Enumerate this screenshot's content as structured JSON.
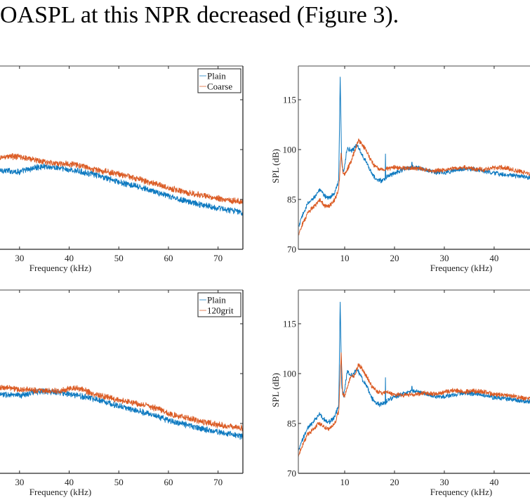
{
  "page": {
    "caption_fragment": "OASPL at this NPR decreased (Figure 3)."
  },
  "colors": {
    "plain": "#0072BD",
    "rough": "#D95319",
    "axis": "#262626",
    "frame_top": "#6e6e6e"
  },
  "chart_data": [
    {
      "id": "top-left",
      "type": "line",
      "title": "",
      "xlabel": "Frequency (kHz)",
      "ylabel": "",
      "xlim": [
        25.5,
        75
      ],
      "ylim": [
        70,
        125
      ],
      "xticks": [
        30,
        40,
        50,
        60,
        70
      ],
      "yticks": [
        85,
        100,
        115
      ],
      "ytick_labels_visible": false,
      "grid": false,
      "legend": {
        "position": "top-right",
        "entries": [
          "Plain",
          "Coarse"
        ]
      },
      "series": [
        {
          "name": "Plain",
          "color_key": "plain",
          "x": [
            25.5,
            28,
            30,
            33,
            35,
            38,
            40,
            43,
            45,
            48,
            50,
            53,
            55,
            58,
            60,
            63,
            65,
            68,
            70,
            73,
            75
          ],
          "y": [
            93.8,
            93.6,
            93.3,
            94.5,
            95.0,
            94.4,
            93.9,
            93.2,
            92.5,
            91.2,
            90.2,
            89.1,
            88.3,
            87.0,
            85.9,
            84.8,
            84.0,
            83.0,
            82.4,
            81.6,
            81.0
          ],
          "noise_db": 0.8
        },
        {
          "name": "Coarse",
          "color_key": "rough",
          "x": [
            25.5,
            28,
            30,
            33,
            35,
            38,
            40,
            43,
            45,
            48,
            50,
            53,
            55,
            58,
            60,
            63,
            65,
            68,
            70,
            73,
            75
          ],
          "y": [
            97.4,
            98.0,
            97.8,
            97.0,
            96.2,
            95.8,
            95.7,
            95.0,
            94.0,
            93.2,
            92.6,
            91.6,
            90.6,
            89.5,
            88.4,
            87.4,
            86.6,
            85.9,
            85.3,
            84.7,
            84.3
          ],
          "noise_db": 0.8
        }
      ]
    },
    {
      "id": "top-right",
      "type": "line",
      "title": "",
      "xlabel": "Frequency (kHz)",
      "ylabel": "SPL (dB)",
      "xlim": [
        0.7,
        47.9
      ],
      "ylim": [
        70,
        125
      ],
      "xticks": [
        10,
        20,
        30,
        40
      ],
      "yticks": [
        70,
        85,
        100,
        115
      ],
      "grid": false,
      "legend": null,
      "series": [
        {
          "name": "Plain",
          "color_key": "plain",
          "x": [
            0.7,
            1.5,
            2.5,
            3.5,
            4.5,
            5,
            6,
            7,
            8,
            8.8,
            9.1,
            9.4,
            9.8,
            10.5,
            11.5,
            12.5,
            13.5,
            14.5,
            15.5,
            16.5,
            17.5,
            18.5,
            20,
            22,
            24,
            26,
            28,
            30,
            32,
            34,
            36,
            38,
            40,
            42,
            44,
            46,
            47.9
          ],
          "y": [
            76.5,
            80.0,
            83.5,
            85.0,
            87.0,
            87.8,
            86.0,
            85.5,
            87.0,
            90.5,
            121.8,
            96.0,
            93.0,
            100.5,
            99.5,
            101.5,
            98.5,
            96.0,
            92.5,
            90.8,
            90.7,
            91.8,
            93.0,
            94.2,
            94.8,
            94.0,
            93.2,
            93.0,
            93.8,
            94.2,
            94.0,
            93.5,
            92.8,
            92.5,
            92.2,
            91.8,
            91.3
          ],
          "spikes": [
            {
              "x": 18.2,
              "y": 98.7
            },
            {
              "x": 23.5,
              "y": 96.2
            }
          ],
          "noise_db": 0.6
        },
        {
          "name": "Coarse",
          "color_key": "rough",
          "x": [
            0.7,
            1.5,
            2.5,
            3.5,
            4.5,
            5,
            6,
            7,
            8,
            8.8,
            9.3,
            9.6,
            10,
            11,
            12,
            12.8,
            13.5,
            14.5,
            15.5,
            16.5,
            17.5,
            18.5,
            20,
            22,
            24,
            26,
            28,
            30,
            32,
            34,
            36,
            38,
            40,
            42,
            44,
            46,
            47.9
          ],
          "y": [
            74.5,
            77.5,
            80.5,
            82.5,
            84.0,
            84.8,
            83.0,
            83.2,
            85.0,
            88.0,
            99.0,
            93.5,
            92.5,
            95.5,
            99.5,
            102.8,
            101.5,
            99.5,
            96.0,
            94.5,
            94.0,
            94.2,
            94.6,
            94.3,
            94.5,
            94.0,
            93.6,
            93.8,
            94.4,
            94.6,
            94.2,
            94.0,
            94.5,
            94.6,
            93.8,
            93.2,
            92.4
          ],
          "noise_db": 0.6
        }
      ]
    },
    {
      "id": "bottom-left",
      "type": "line",
      "title": "",
      "xlabel": "Frequency (kHz)",
      "ylabel": "",
      "xlim": [
        25.5,
        75
      ],
      "ylim": [
        70,
        125
      ],
      "xticks": [
        30,
        40,
        50,
        60,
        70
      ],
      "yticks": [
        85,
        100,
        115
      ],
      "ytick_labels_visible": false,
      "grid": false,
      "legend": {
        "position": "top-right",
        "entries": [
          "Plain",
          "120grit"
        ]
      },
      "series": [
        {
          "name": "Plain",
          "color_key": "plain",
          "x": [
            25.5,
            28,
            30,
            33,
            35,
            38,
            40,
            43,
            45,
            48,
            50,
            53,
            55,
            58,
            60,
            63,
            65,
            68,
            70,
            73,
            75
          ],
          "y": [
            93.8,
            93.6,
            93.3,
            94.5,
            94.8,
            94.2,
            93.8,
            93.1,
            92.5,
            91.2,
            90.2,
            89.1,
            88.4,
            87.0,
            85.9,
            84.8,
            84.0,
            83.1,
            82.4,
            81.7,
            81.0
          ],
          "noise_db": 0.8
        },
        {
          "name": "120grit",
          "color_key": "rough",
          "x": [
            25.5,
            28,
            30,
            33,
            35,
            38,
            40,
            41,
            43,
            45,
            48,
            50,
            53,
            55,
            58,
            60,
            63,
            65,
            68,
            70,
            73,
            75
          ],
          "y": [
            96.0,
            95.6,
            95.2,
            95.0,
            94.8,
            94.8,
            95.6,
            95.8,
            95.0,
            93.8,
            92.8,
            92.0,
            91.2,
            90.5,
            89.3,
            88.0,
            86.8,
            86.2,
            85.2,
            84.6,
            84.0,
            83.6
          ],
          "noise_db": 0.8
        }
      ]
    },
    {
      "id": "bottom-right",
      "type": "line",
      "title": "",
      "xlabel": "Frequency (kHz)",
      "ylabel": "SPL (dB)",
      "xlim": [
        0.7,
        47.9
      ],
      "ylim": [
        70,
        125
      ],
      "xticks": [
        10,
        20,
        30,
        40
      ],
      "yticks": [
        70,
        85,
        100,
        115
      ],
      "grid": false,
      "legend": null,
      "series": [
        {
          "name": "Plain",
          "color_key": "plain",
          "x": [
            0.7,
            1.5,
            2.5,
            3.5,
            4.5,
            5,
            6,
            7,
            8,
            8.8,
            9.1,
            9.4,
            9.8,
            10.5,
            11.5,
            12.5,
            13.5,
            14.5,
            15.5,
            16.5,
            17.5,
            18.5,
            20,
            22,
            24,
            26,
            28,
            30,
            32,
            34,
            36,
            38,
            40,
            42,
            44,
            46,
            47.9
          ],
          "y": [
            76.5,
            80.0,
            83.5,
            85.0,
            87.0,
            87.8,
            86.0,
            85.5,
            87.0,
            90.5,
            121.5,
            96.0,
            93.0,
            100.5,
            99.5,
            101.3,
            98.5,
            96.0,
            92.5,
            90.8,
            90.7,
            91.8,
            93.0,
            94.0,
            94.8,
            94.0,
            93.2,
            93.0,
            93.6,
            94.2,
            94.0,
            93.5,
            92.8,
            92.5,
            92.2,
            91.8,
            91.3
          ],
          "spikes": [
            {
              "x": 18.2,
              "y": 98.8
            },
            {
              "x": 23.5,
              "y": 96.2
            }
          ],
          "noise_db": 0.6
        },
        {
          "name": "120grit",
          "color_key": "rough",
          "x": [
            0.7,
            1.5,
            2.5,
            3.5,
            4.5,
            5,
            6,
            7,
            8,
            8.8,
            9.3,
            9.6,
            10,
            11,
            12,
            12.8,
            13.5,
            14.5,
            15.5,
            16.5,
            17.5,
            18.5,
            20,
            22,
            24,
            26,
            28,
            30,
            32,
            34,
            36,
            38,
            40,
            42,
            44,
            46,
            47.9
          ],
          "y": [
            75.5,
            78.5,
            81.5,
            83.0,
            84.5,
            85.0,
            83.5,
            83.5,
            85.0,
            88.5,
            106.3,
            94.0,
            93.0,
            98.5,
            99.5,
            102.7,
            101.5,
            99.0,
            96.0,
            94.5,
            94.2,
            94.5,
            93.8,
            93.5,
            93.8,
            94.2,
            93.8,
            94.5,
            95.0,
            94.5,
            94.8,
            94.5,
            93.8,
            93.5,
            93.2,
            92.6,
            92.2
          ],
          "noise_db": 0.6
        }
      ]
    }
  ]
}
